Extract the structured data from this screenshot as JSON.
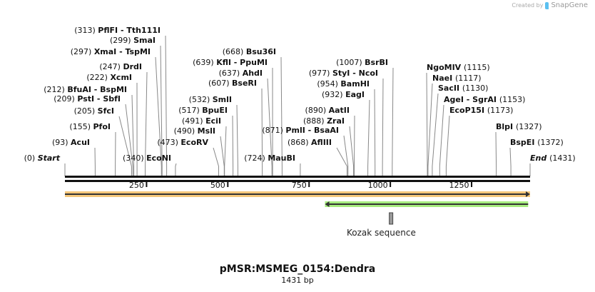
{
  "credit": {
    "prefix": "Created by",
    "brand": "SnapGene"
  },
  "map": {
    "title": "pMSR:MSMEG_0154:Dendra",
    "length_label": "1431 bp",
    "length_bp": 1431,
    "ruler_ticks": [
      250,
      500,
      750,
      1000,
      1250
    ],
    "ends": [
      {
        "name": "Start",
        "pos": 0
      },
      {
        "name": "End",
        "pos": 1431
      }
    ],
    "enzymes": [
      {
        "name": "AcuI",
        "pos": 93
      },
      {
        "name": "PfoI",
        "pos": 155
      },
      {
        "name": "SfcI",
        "pos": 205
      },
      {
        "name": "PstI  - SbfI",
        "pos": 209
      },
      {
        "name": "BfuAI  - BspMI",
        "pos": 212
      },
      {
        "name": "XcmI",
        "pos": 222
      },
      {
        "name": "DrdI",
        "pos": 247
      },
      {
        "name": "XmaI  - TspMI",
        "pos": 297
      },
      {
        "name": "SmaI",
        "pos": 299
      },
      {
        "name": "PflFI  - Tth111I",
        "pos": 313
      },
      {
        "name": "EcoNI",
        "pos": 340
      },
      {
        "name": "EcoRV",
        "pos": 473
      },
      {
        "name": "MslI",
        "pos": 490
      },
      {
        "name": "EciI",
        "pos": 491
      },
      {
        "name": "BpuEI",
        "pos": 517
      },
      {
        "name": "SmlI",
        "pos": 532
      },
      {
        "name": "BseRI",
        "pos": 607
      },
      {
        "name": "AhdI",
        "pos": 637
      },
      {
        "name": "KflI  - PpuMI",
        "pos": 639
      },
      {
        "name": "Bsu36I",
        "pos": 668
      },
      {
        "name": "MauBI",
        "pos": 724
      },
      {
        "name": "AflIII",
        "pos": 868
      },
      {
        "name": "PmlI  - BsaAI",
        "pos": 871
      },
      {
        "name": "ZraI",
        "pos": 888
      },
      {
        "name": "AatII",
        "pos": 890
      },
      {
        "name": "EagI",
        "pos": 932
      },
      {
        "name": "BamHI",
        "pos": 954
      },
      {
        "name": "StyI  - NcoI",
        "pos": 977
      },
      {
        "name": "BsrBI",
        "pos": 1007
      },
      {
        "name": "NgoMIV",
        "pos": 1115
      },
      {
        "name": "NaeI",
        "pos": 1117
      },
      {
        "name": "SacII",
        "pos": 1130
      },
      {
        "name": "AgeI  - SgrAI",
        "pos": 1153
      },
      {
        "name": "EcoP15I",
        "pos": 1173
      },
      {
        "name": "BlpI",
        "pos": 1327
      },
      {
        "name": "BspEI",
        "pos": 1372
      }
    ],
    "features": [
      {
        "name": "orange-feature",
        "start": 1,
        "end": 1431,
        "direction": "forward",
        "color": "#f5c77a"
      },
      {
        "name": "green-feature",
        "start": 800,
        "end": 1425,
        "direction": "reverse",
        "color": "#a6ec7e"
      },
      {
        "name": "Kozak sequence",
        "start": 1000,
        "end": 1009,
        "color": "#999999"
      }
    ]
  }
}
